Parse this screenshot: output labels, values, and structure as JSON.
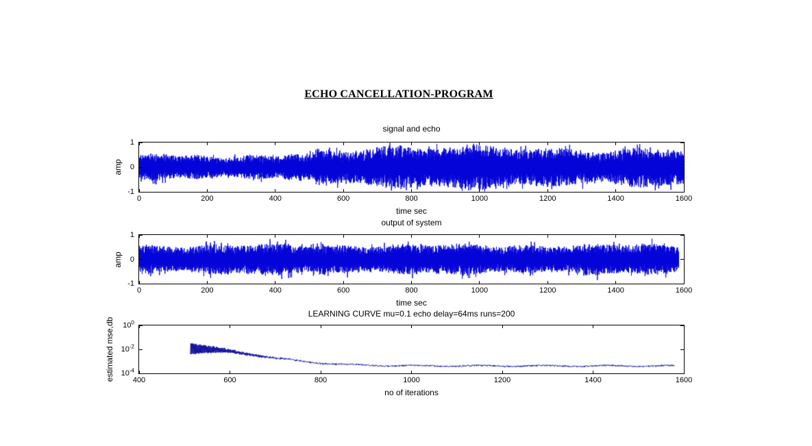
{
  "figure": {
    "title": "ECHO CANCELLATION-PROGRAM",
    "background": "#ffffff",
    "axis_color": "#000000",
    "text_color": "#000000"
  },
  "chart_data": [
    {
      "type": "line",
      "title": "signal and echo",
      "xlabel": "time sec",
      "ylabel": "amp",
      "xlim": [
        0,
        1600
      ],
      "ylim": [
        -1,
        1
      ],
      "xticks": [
        0,
        200,
        400,
        600,
        800,
        1000,
        1200,
        1400,
        1600
      ],
      "yticks": [
        1,
        0,
        -1
      ],
      "grid": false,
      "legend": null,
      "line_color": "#0404d8",
      "series_summary": "dense zero-mean random signal drawn as a solid blue band; amplitude envelope about ±0.5 for t<500 s, echo appears at t≈500 s raising the envelope to about ±0.85 with slow modulation, spanning t=0 to t=1600",
      "gen": {
        "seed": 7,
        "x_end": 1600,
        "base_amp": 0.42,
        "echo_onset": 500,
        "echo_amp": 0.7,
        "samples_per_unit": 2
      }
    },
    {
      "type": "line",
      "title": "output of system",
      "xlabel": "time sec",
      "ylabel": "amp",
      "xlim": [
        0,
        1600
      ],
      "ylim": [
        -1,
        1
      ],
      "xticks": [
        0,
        200,
        400,
        600,
        800,
        1000,
        1200,
        1400,
        1600
      ],
      "yticks": [
        1,
        0,
        -1
      ],
      "grid": false,
      "legend": null,
      "line_color": "#0404d8",
      "series_summary": "echo-cancelled output; nearly uniform noise band about ±0.55 from t=0 to t≈1585 with occasional taller spikes reaching ≈0.9 around t≈510–545",
      "gen": {
        "seed": 13,
        "x_end": 1585,
        "base_amp": 0.52,
        "spike_window": [
          500,
          545
        ],
        "samples_per_unit": 2
      }
    },
    {
      "type": "line",
      "title": "LEARNING CURVE mu=0.1 echo delay=64ms runs=200",
      "xlabel": "no of iterations",
      "ylabel": "estimated mse,db",
      "xlim": [
        400,
        1600
      ],
      "yscale": "log",
      "ylim": [
        0.0001,
        1
      ],
      "xticks": [
        400,
        600,
        800,
        1000,
        1200,
        1400,
        1600
      ],
      "ytick_base": "10",
      "ytick_exponents": [
        0,
        -2,
        -4
      ],
      "grid": false,
      "legend": null,
      "line_color": "#12129e",
      "series_summary": "adaptive filter learning curve starting at iteration ≈513: spiky oscillation between ≈4e-2 and ≈5e-3 decaying exponentially (tau ≈ 60 iterations) into a flat noisy floor of ≈3.5e-4 from ≈780 out to ≈1580 iterations",
      "gen": {
        "seed": 21,
        "x_start": 513,
        "x_end": 1580,
        "peak": 0.035,
        "floor": 0.00042,
        "decay_tau": 62,
        "osc_ratio": 0.13,
        "osc_tau": 75,
        "step": 0.8
      }
    }
  ]
}
